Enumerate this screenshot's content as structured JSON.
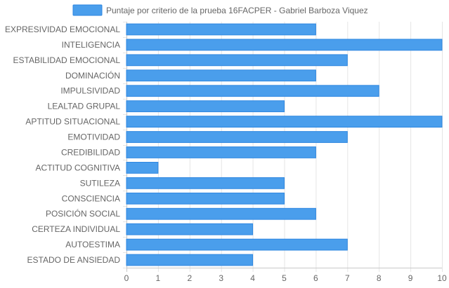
{
  "chart_data": {
    "type": "bar",
    "orientation": "horizontal",
    "legend": {
      "label": "Puntaje por criterio de la prueba 16FACPER - Gabriel Barboza Viquez",
      "position": "top"
    },
    "categories": [
      "EXPRESIVIDAD EMOCIONAL",
      "INTELIGENCIA",
      "ESTABILIDAD EMOCIONAL",
      "DOMINACIÓN",
      "IMPULSIVIDAD",
      "LEALTAD GRUPAL",
      "APTITUD SITUACIONAL",
      "EMOTIVIDAD",
      "CREDIBILIDAD",
      "ACTITUD COGNITIVA",
      "SUTILEZA",
      "CONSCIENCIA",
      "POSICIÓN SOCIAL",
      "CERTEZA INDIVIDUAL",
      "AUTOESTIMA",
      "ESTADO DE ANSIEDAD"
    ],
    "values": [
      6,
      10,
      7,
      6,
      8,
      5,
      10,
      7,
      6,
      1,
      5,
      5,
      6,
      4,
      7,
      4
    ],
    "xlim": [
      0,
      10
    ],
    "xticks": [
      0,
      1,
      2,
      3,
      4,
      5,
      6,
      7,
      8,
      9,
      10
    ],
    "grid": true,
    "colors": {
      "bar_fill": "#4a9eec",
      "bar_stroke": "#2f87e0",
      "grid": "#e5e5e5",
      "axis": "#c8c8c8",
      "text": "#666666"
    }
  }
}
